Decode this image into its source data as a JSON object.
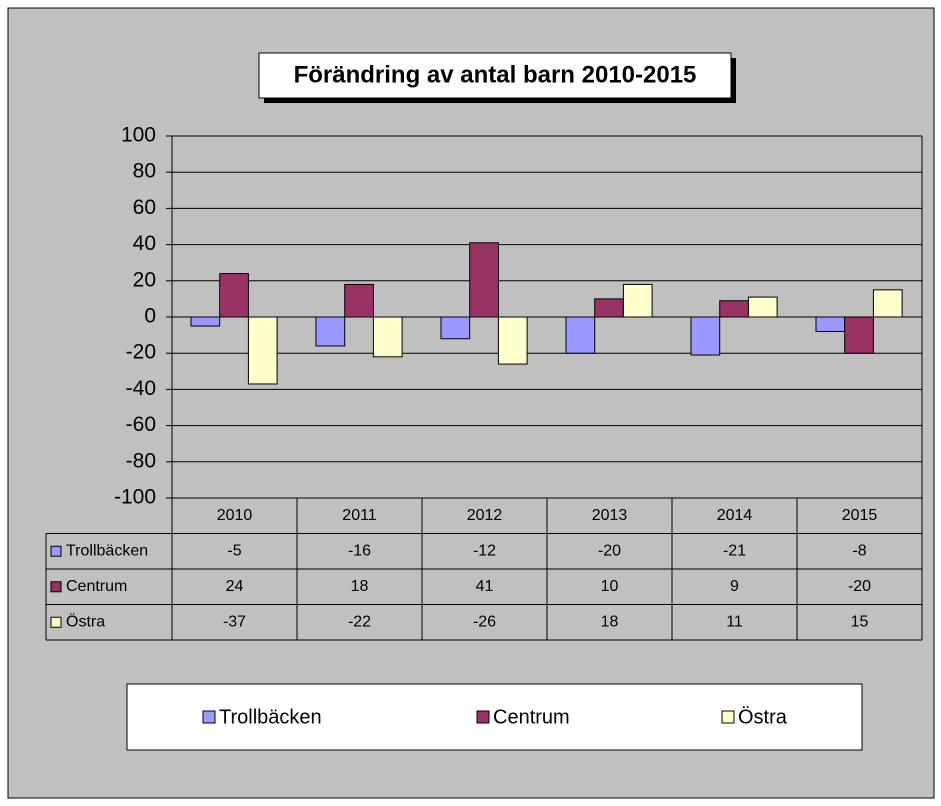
{
  "chart_data": {
    "type": "bar",
    "title": "Förändring av antal barn 2010-2015",
    "categories": [
      "2010",
      "2011",
      "2012",
      "2013",
      "2014",
      "2015"
    ],
    "series": [
      {
        "name": "Trollbäcken",
        "color": "#9999ff",
        "values": [
          -5,
          -16,
          -12,
          -20,
          -21,
          -8
        ]
      },
      {
        "name": "Centrum",
        "color": "#993366",
        "values": [
          24,
          18,
          41,
          10,
          9,
          -20
        ]
      },
      {
        "name": "Östra",
        "color": "#ffffcc",
        "values": [
          -37,
          -22,
          -26,
          18,
          11,
          15
        ]
      }
    ],
    "ylim": [
      -100,
      100
    ],
    "yticks": [
      -100,
      -80,
      -60,
      -40,
      -20,
      0,
      20,
      40,
      60,
      80,
      100
    ],
    "grid": true,
    "legend": "bottom",
    "data_table": true
  }
}
